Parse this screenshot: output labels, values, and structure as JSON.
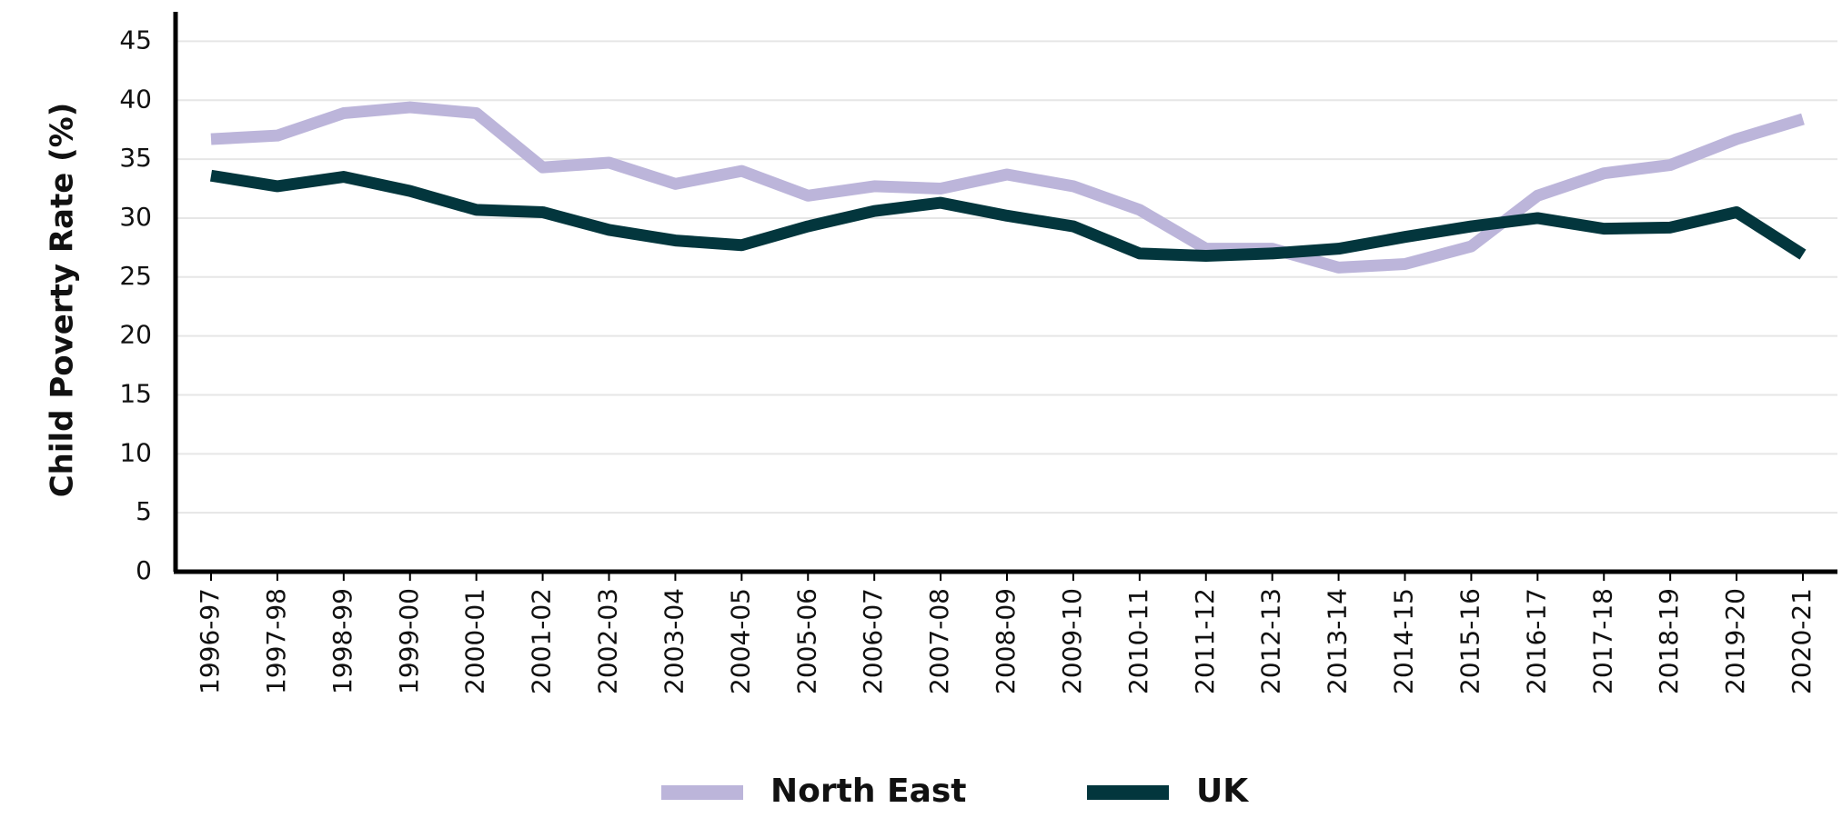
{
  "chart_data": {
    "type": "line",
    "y_label": "Child Poverty Rate (%)",
    "categories": [
      "1996-97",
      "1997-98",
      "1998-99",
      "1999-00",
      "2000-01",
      "2001-02",
      "2002-03",
      "2003-04",
      "2004-05",
      "2005-06",
      "2006-07",
      "2007-08",
      "2008-09",
      "2009-10",
      "2010-11",
      "2011-12",
      "2012-13",
      "2013-14",
      "2014-15",
      "2015-16",
      "2016-17",
      "2017-18",
      "2018-19",
      "2019-20",
      "2020-21"
    ],
    "series": [
      {
        "name": "North East",
        "color": "#bcb5da",
        "values": [
          36.7,
          37.0,
          38.9,
          39.4,
          38.9,
          34.3,
          34.7,
          32.9,
          34.0,
          31.9,
          32.7,
          32.5,
          33.7,
          32.7,
          30.7,
          27.4,
          27.4,
          25.8,
          26.1,
          27.6,
          31.9,
          33.8,
          34.5,
          36.7,
          38.4
        ]
      },
      {
        "name": "UK",
        "color": "#03363d",
        "values": [
          33.6,
          32.7,
          33.5,
          32.3,
          30.7,
          30.5,
          29.0,
          28.1,
          27.7,
          29.3,
          30.6,
          31.3,
          30.2,
          29.3,
          27.0,
          26.8,
          27.0,
          27.4,
          28.4,
          29.3,
          30.0,
          29.1,
          29.2,
          30.5,
          26.9
        ]
      }
    ],
    "ylim": [
      0,
      47.5
    ],
    "yticks": [
      0,
      5,
      10,
      15,
      20,
      25,
      30,
      35,
      40,
      45
    ],
    "grid": true,
    "legend": "bottom"
  }
}
